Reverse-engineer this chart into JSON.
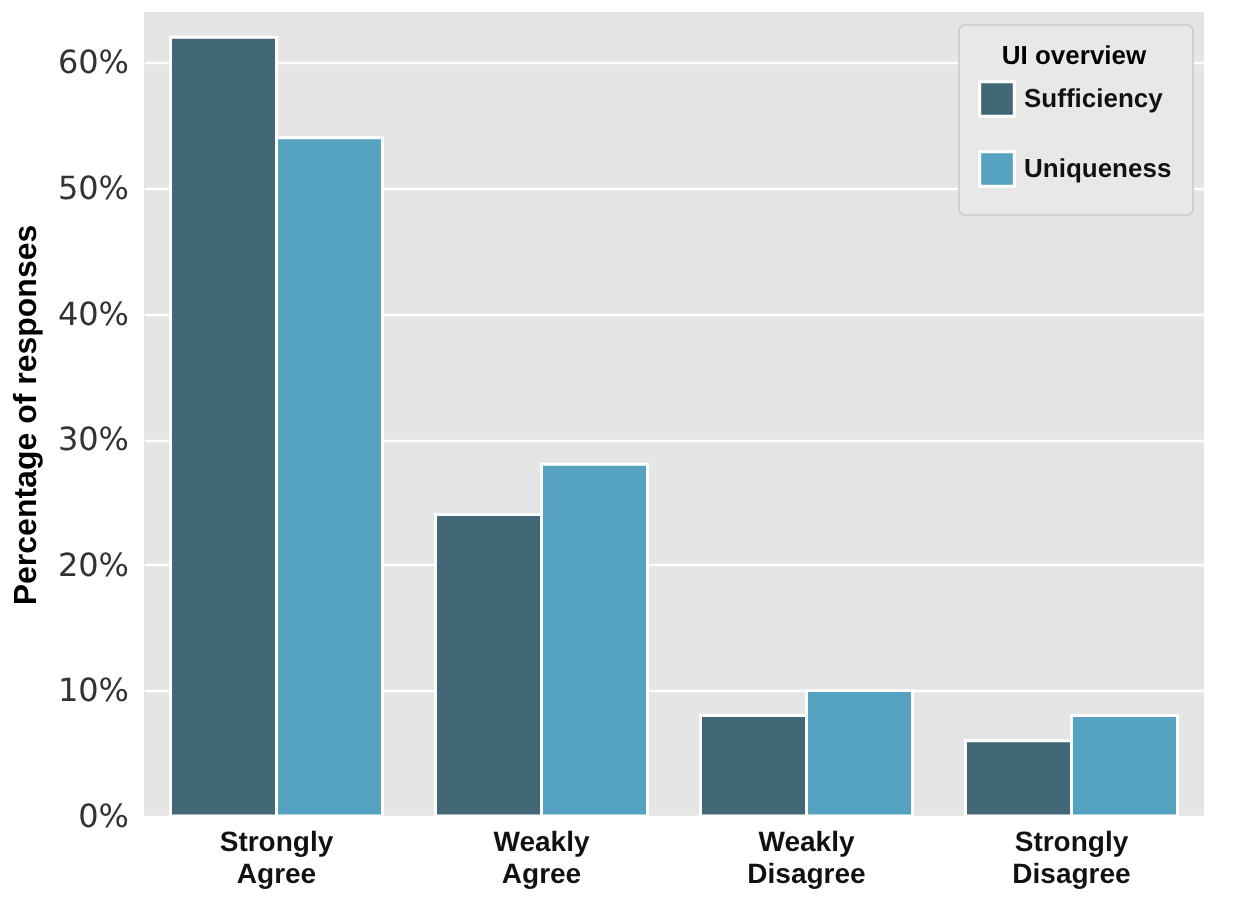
{
  "chart_data": {
    "type": "bar",
    "ylabel": "Percentage of responses",
    "legend_title": "UI overview",
    "legend": "top right",
    "categories": [
      "Strongly Agree",
      "Weakly Agree",
      "Weakly Disagree",
      "Strongly Disagree"
    ],
    "series": [
      {
        "name": "Sufficiency",
        "color": "#426877",
        "values": [
          62,
          24,
          8,
          6
        ]
      },
      {
        "name": "Uniqueness",
        "color": "#56a3c1",
        "values": [
          54,
          28,
          10,
          8
        ]
      }
    ],
    "ylim": [
      0,
      64
    ],
    "yticks": [
      {
        "value": 0,
        "label": "0%"
      },
      {
        "value": 10,
        "label": "10%"
      },
      {
        "value": 20,
        "label": "20%"
      },
      {
        "value": 30,
        "label": "30%"
      },
      {
        "value": 40,
        "label": "40%"
      },
      {
        "value": 50,
        "label": "50%"
      },
      {
        "value": 60,
        "label": "60%"
      }
    ],
    "grid": "y"
  }
}
